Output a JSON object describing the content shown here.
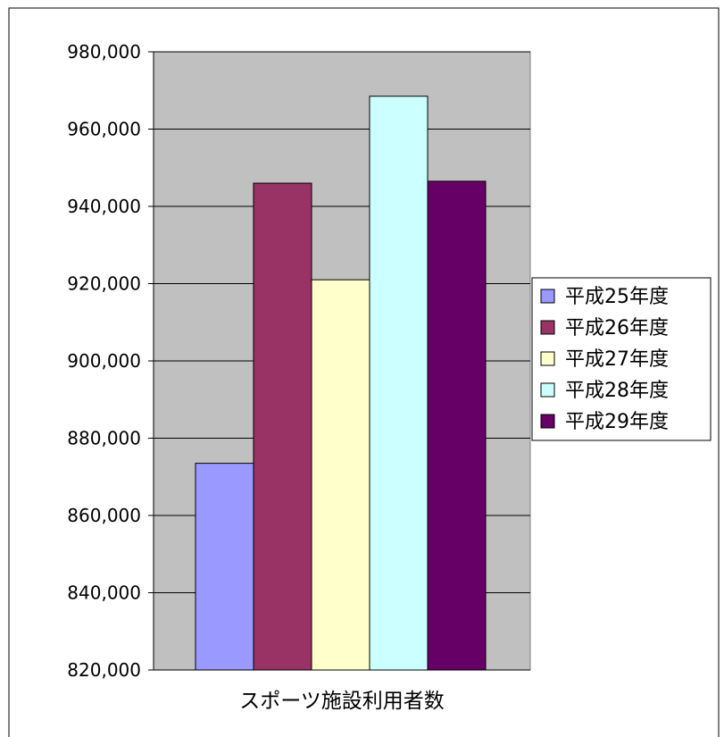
{
  "chart_data": {
    "type": "bar",
    "categories": [
      "スポーツ施設利用者数"
    ],
    "series": [
      {
        "name": "平成25年度",
        "values": [
          873500
        ],
        "color": "#9999ff"
      },
      {
        "name": "平成26年度",
        "values": [
          946000
        ],
        "color": "#993366"
      },
      {
        "name": "平成27年度",
        "values": [
          921000
        ],
        "color": "#ffffcc"
      },
      {
        "name": "平成28年度",
        "values": [
          968500
        ],
        "color": "#ccffff"
      },
      {
        "name": "平成29年度",
        "values": [
          946500
        ],
        "color": "#660066"
      }
    ],
    "title": "",
    "xlabel": "",
    "ylabel": "",
    "ylim": [
      820000,
      980000
    ],
    "yticks": [
      {
        "value": 820000,
        "label": "820,000"
      },
      {
        "value": 840000,
        "label": "840,000"
      },
      {
        "value": 860000,
        "label": "860,000"
      },
      {
        "value": 880000,
        "label": "880,000"
      },
      {
        "value": 900000,
        "label": "900,000"
      },
      {
        "value": 920000,
        "label": "920,000"
      },
      {
        "value": 940000,
        "label": "940,000"
      },
      {
        "value": 960000,
        "label": "960,000"
      },
      {
        "value": 980000,
        "label": "980,000"
      }
    ],
    "grid": true,
    "plot_background": "#c0c0c0",
    "legend_position": "right"
  }
}
